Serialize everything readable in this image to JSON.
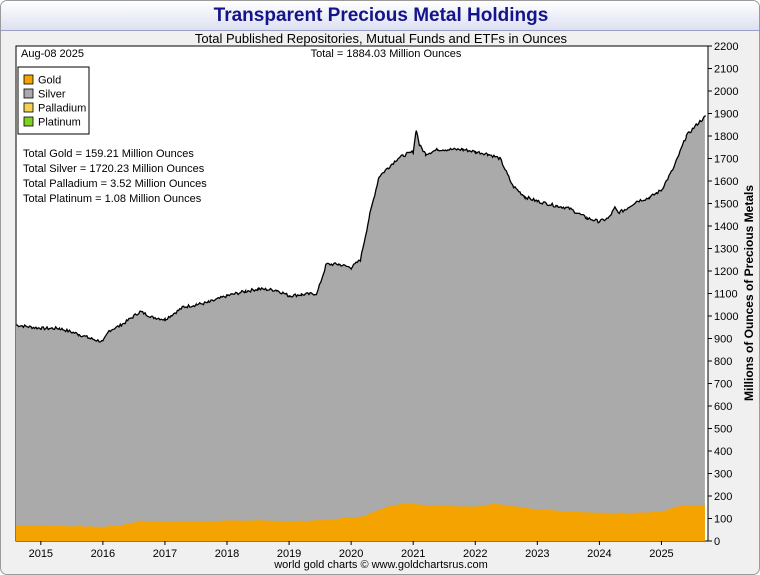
{
  "chart_data": {
    "type": "area",
    "title": "Transparent Precious Metal Holdings",
    "subtitle": "Total Published Repositories, Mutual Funds and ETFs in Ounces",
    "date_label": "Aug-08  2025",
    "total_label": "Total = 1884.03 Million Ounces",
    "ylabel": "Millions of Ounces of Precious Metals",
    "footer": "world gold charts © www.goldchartsrus.com",
    "ylim": [
      0,
      2200
    ],
    "yticks": [
      "0",
      "100",
      "200",
      "300",
      "400",
      "500",
      "600",
      "700",
      "800",
      "900",
      "1000",
      "1100",
      "1200",
      "1300",
      "1400",
      "1500",
      "1600",
      "1700",
      "1800",
      "1900",
      "2000",
      "2100",
      "2200"
    ],
    "xlim": [
      2014.6,
      2025.75
    ],
    "xticks": [
      "2015",
      "2016",
      "2017",
      "2018",
      "2019",
      "2020",
      "2021",
      "2022",
      "2023",
      "2024",
      "2025"
    ],
    "legend_position": "top-left",
    "series": [
      {
        "name": "Gold",
        "color": "#f5a300"
      },
      {
        "name": "Silver",
        "color": "#aaaaaa"
      },
      {
        "name": "Palladium",
        "color": "#f2d250"
      },
      {
        "name": "Platinum",
        "color": "#7ed321"
      }
    ],
    "totals": [
      "Total Gold = 159.21 Million Ounces",
      "Total Silver = 1720.23 Million Ounces",
      "Total Palladium = 3.52 Million Ounces",
      "Total Platinum = 1.08 Million Ounces"
    ],
    "total_curve": {
      "x": [
        2014.6,
        2015.0,
        2015.3,
        2015.6,
        2015.8,
        2016.0,
        2016.1,
        2016.3,
        2016.6,
        2016.8,
        2017.0,
        2017.3,
        2017.5,
        2017.7,
        2018.0,
        2018.3,
        2018.5,
        2018.8,
        2019.0,
        2019.2,
        2019.45,
        2019.6,
        2019.8,
        2020.0,
        2020.15,
        2020.3,
        2020.45,
        2020.6,
        2020.75,
        2020.9,
        2021.0,
        2021.05,
        2021.1,
        2021.2,
        2021.4,
        2021.6,
        2021.8,
        2022.0,
        2022.2,
        2022.4,
        2022.6,
        2022.8,
        2023.0,
        2023.3,
        2023.5,
        2023.8,
        2024.0,
        2024.15,
        2024.25,
        2024.3,
        2024.4,
        2024.6,
        2024.8,
        2025.0,
        2025.2,
        2025.4,
        2025.6,
        2025.7
      ],
      "y": [
        960,
        945,
        945,
        920,
        900,
        885,
        935,
        960,
        1020,
        995,
        985,
        1040,
        1050,
        1060,
        1090,
        1110,
        1120,
        1115,
        1090,
        1095,
        1100,
        1230,
        1230,
        1215,
        1250,
        1450,
        1620,
        1660,
        1700,
        1720,
        1730,
        1830,
        1760,
        1720,
        1740,
        1740,
        1740,
        1730,
        1720,
        1700,
        1580,
        1530,
        1510,
        1490,
        1480,
        1435,
        1420,
        1435,
        1480,
        1460,
        1470,
        1510,
        1525,
        1560,
        1660,
        1800,
        1860,
        1884
      ]
    },
    "gold_curve": {
      "x": [
        2014.6,
        2015.0,
        2015.5,
        2016.0,
        2016.3,
        2016.6,
        2017.0,
        2017.5,
        2018.0,
        2018.5,
        2019.0,
        2019.5,
        2019.8,
        2020.0,
        2020.2,
        2020.4,
        2020.6,
        2020.8,
        2021.0,
        2021.3,
        2021.6,
        2022.0,
        2022.3,
        2022.6,
        2023.0,
        2023.5,
        2024.0,
        2024.5,
        2025.0,
        2025.2,
        2025.4,
        2025.7
      ],
      "y": [
        70,
        68,
        66,
        63,
        70,
        90,
        85,
        88,
        90,
        92,
        88,
        92,
        100,
        105,
        110,
        135,
        155,
        165,
        165,
        158,
        155,
        152,
        165,
        155,
        140,
        132,
        125,
        125,
        130,
        150,
        160,
        159
      ]
    }
  }
}
